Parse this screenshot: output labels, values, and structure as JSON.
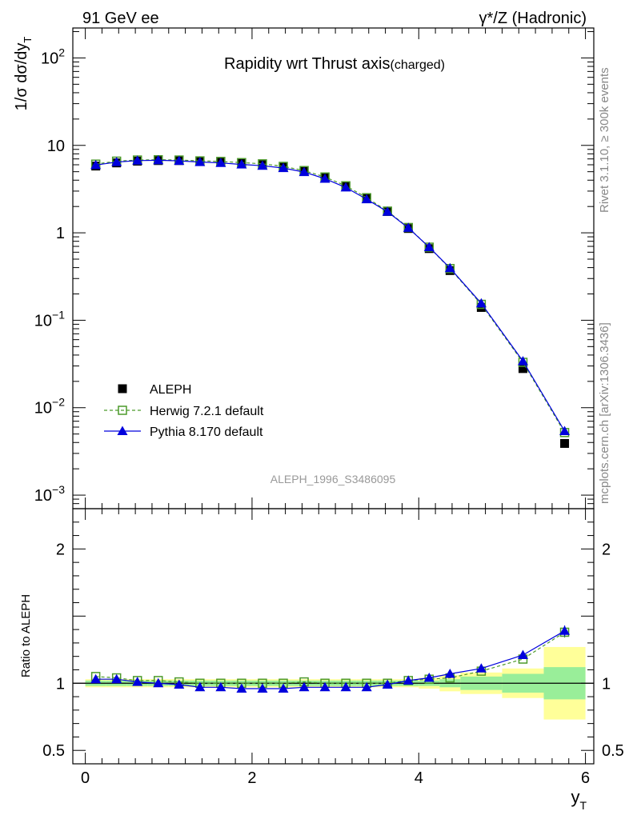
{
  "header": {
    "left": "91 GeV ee",
    "right": "γ*/Z (Hadronic)"
  },
  "side_text": {
    "rivet": "Rivet 3.1.10, ≥ 300k events",
    "mcplots": "mcplots.cern.ch [arXiv:1306.3436]"
  },
  "chart_data": {
    "type": "scatter",
    "title": "Rapidity wrt Thrust axis",
    "title_suffix": "(charged)",
    "xlabel": "y",
    "xlabel_sub": "T",
    "ylabel": "1/σ dσ/dy",
    "ylabel_sub": "T",
    "ratio_ylabel": "Ratio to ALEPH",
    "analysis_tag": "ALEPH_1996_S3486095",
    "xlim": [
      -0.15,
      6.1
    ],
    "ylim": [
      0.0007,
      220
    ],
    "yscale": "log",
    "ratio_ylim": [
      0.4,
      2.3
    ],
    "x_ticks": [
      0,
      2,
      4,
      6
    ],
    "x_tick_labels": [
      "0",
      "2",
      "4",
      "6"
    ],
    "y_ticks": [
      0.001,
      0.01,
      0.1,
      1,
      10,
      100
    ],
    "y_tick_labels": [
      {
        "base": "10",
        "exp": "−3"
      },
      {
        "base": "10",
        "exp": "−2"
      },
      {
        "base": "10",
        "exp": "−1"
      },
      {
        "base": "1",
        "exp": ""
      },
      {
        "base": "10",
        "exp": ""
      },
      {
        "base": "10",
        "exp": "2"
      }
    ],
    "ratio_ticks": [
      0.5,
      1,
      2
    ],
    "ratio_tick_labels": [
      "0.5",
      "1",
      "2"
    ],
    "x": [
      0.125,
      0.375,
      0.625,
      0.875,
      1.125,
      1.375,
      1.625,
      1.875,
      2.125,
      2.375,
      2.625,
      2.875,
      3.125,
      3.375,
      3.625,
      3.875,
      4.125,
      4.375,
      4.75,
      5.25,
      5.75
    ],
    "x_edges": [
      0,
      0.25,
      0.5,
      0.75,
      1.0,
      1.25,
      1.5,
      1.75,
      2.0,
      2.25,
      2.5,
      2.75,
      3.0,
      3.25,
      3.5,
      3.75,
      4.0,
      4.25,
      4.5,
      5.0,
      5.5,
      6.0
    ],
    "band_inner": [
      0.02,
      0.02,
      0.02,
      0.02,
      0.02,
      0.02,
      0.02,
      0.02,
      0.02,
      0.02,
      0.02,
      0.02,
      0.02,
      0.02,
      0.02,
      0.02,
      0.02,
      0.03,
      0.05,
      0.07,
      0.12
    ],
    "band_outer": [
      0.03,
      0.03,
      0.03,
      0.03,
      0.03,
      0.03,
      0.03,
      0.03,
      0.03,
      0.03,
      0.03,
      0.03,
      0.03,
      0.03,
      0.03,
      0.03,
      0.04,
      0.06,
      0.08,
      0.11,
      0.27
    ],
    "series": [
      {
        "name": "ALEPH",
        "marker": "square-filled",
        "color": "#000000",
        "values": [
          5.8,
          6.3,
          6.6,
          6.7,
          6.7,
          6.6,
          6.5,
          6.3,
          6.1,
          5.7,
          5.1,
          4.3,
          3.4,
          2.5,
          1.75,
          1.12,
          0.66,
          0.37,
          0.14,
          0.028,
          0.0039
        ]
      },
      {
        "name": "Herwig 7.2.1 default",
        "marker": "square-open",
        "color": "#4c9a2a",
        "line": "dashed",
        "values": [
          6.1,
          6.6,
          6.8,
          6.85,
          6.8,
          6.65,
          6.55,
          6.35,
          6.15,
          5.75,
          5.15,
          4.35,
          3.45,
          2.52,
          1.77,
          1.15,
          0.685,
          0.39,
          0.152,
          0.033,
          0.0052
        ],
        "ratio": [
          1.05,
          1.04,
          1.02,
          1.02,
          1.01,
          1.0,
          1.0,
          1.0,
          1.0,
          1.0,
          1.01,
          1.0,
          1.0,
          1.0,
          1.0,
          1.02,
          1.03,
          1.04,
          1.09,
          1.18,
          1.38
        ]
      },
      {
        "name": "Pythia 8.170 default",
        "marker": "triangle-filled",
        "color": "#0000dd",
        "line": "solid",
        "values": [
          5.95,
          6.45,
          6.7,
          6.75,
          6.65,
          6.45,
          6.3,
          6.05,
          5.85,
          5.5,
          4.95,
          4.15,
          3.3,
          2.42,
          1.74,
          1.14,
          0.685,
          0.395,
          0.156,
          0.034,
          0.0054
        ],
        "ratio": [
          1.03,
          1.03,
          1.01,
          1.0,
          0.99,
          0.97,
          0.97,
          0.96,
          0.96,
          0.96,
          0.97,
          0.97,
          0.97,
          0.97,
          0.99,
          1.02,
          1.04,
          1.07,
          1.11,
          1.21,
          1.39
        ]
      }
    ]
  }
}
